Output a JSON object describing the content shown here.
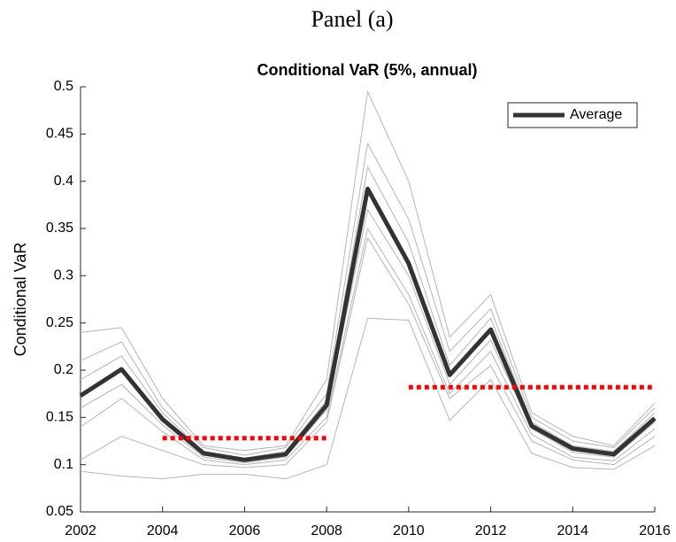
{
  "panel_label": "Panel (a)",
  "chart_data": {
    "type": "line",
    "title": "Conditional VaR (5%, annual)",
    "y_label": "Conditional VaR",
    "x": [
      2002,
      2003,
      2004,
      2005,
      2006,
      2007,
      2008,
      2009,
      2010,
      2011,
      2012,
      2013,
      2014,
      2015,
      2016
    ],
    "series": [
      {
        "color": "#b4b4b4",
        "values": [
          0.24,
          0.245,
          0.17,
          0.12,
          0.115,
          0.12,
          0.19,
          0.495,
          0.4,
          0.235,
          0.28,
          0.155,
          0.13,
          0.12,
          0.165
        ]
      },
      {
        "color": "#b4b4b4",
        "values": [
          0.093,
          0.088,
          0.085,
          0.09,
          0.09,
          0.085,
          0.1,
          0.255,
          0.253,
          0.147,
          0.19,
          0.112,
          0.097,
          0.095,
          0.12
        ]
      },
      {
        "color": "#b4b4b4",
        "values": [
          0.21,
          0.23,
          0.16,
          0.118,
          0.11,
          0.118,
          0.175,
          0.44,
          0.36,
          0.22,
          0.265,
          0.15,
          0.125,
          0.118,
          0.16
        ]
      },
      {
        "color": "#b4b4b4",
        "values": [
          0.14,
          0.17,
          0.135,
          0.105,
          0.1,
          0.105,
          0.15,
          0.35,
          0.28,
          0.175,
          0.22,
          0.132,
          0.108,
          0.104,
          0.138
        ]
      },
      {
        "color": "#b4b4b4",
        "values": [
          0.105,
          0.13,
          0.115,
          0.1,
          0.097,
          0.1,
          0.145,
          0.34,
          0.27,
          0.17,
          0.205,
          0.125,
          0.105,
          0.1,
          0.13
        ]
      },
      {
        "color": "#b4b4b4",
        "values": [
          0.19,
          0.215,
          0.155,
          0.114,
          0.107,
          0.114,
          0.168,
          0.415,
          0.335,
          0.205,
          0.255,
          0.145,
          0.12,
          0.114,
          0.155
        ]
      },
      {
        "color": "#b4b4b4",
        "values": [
          0.16,
          0.185,
          0.142,
          0.108,
          0.102,
          0.108,
          0.158,
          0.37,
          0.3,
          0.185,
          0.232,
          0.138,
          0.113,
          0.108,
          0.145
        ]
      },
      {
        "name": "Average",
        "color": "#333333",
        "values": [
          0.173,
          0.201,
          0.148,
          0.112,
          0.105,
          0.111,
          0.163,
          0.392,
          0.313,
          0.195,
          0.243,
          0.141,
          0.117,
          0.111,
          0.149
        ]
      }
    ],
    "reference_lines": [
      {
        "x": [
          2004,
          2008
        ],
        "y": 0.128,
        "color": "#ff0000"
      },
      {
        "x": [
          2010,
          2016
        ],
        "y": 0.182,
        "color": "#ff0000"
      }
    ],
    "xlim": [
      2002,
      2016
    ],
    "xticks": [
      2002,
      2004,
      2006,
      2008,
      2010,
      2012,
      2014,
      2016
    ],
    "ylim": [
      0.05,
      0.5
    ],
    "yticks": [
      0.05,
      0.1,
      0.15,
      0.2,
      0.25,
      0.3,
      0.35,
      0.4,
      0.45,
      0.5
    ],
    "legend": "upper right"
  }
}
